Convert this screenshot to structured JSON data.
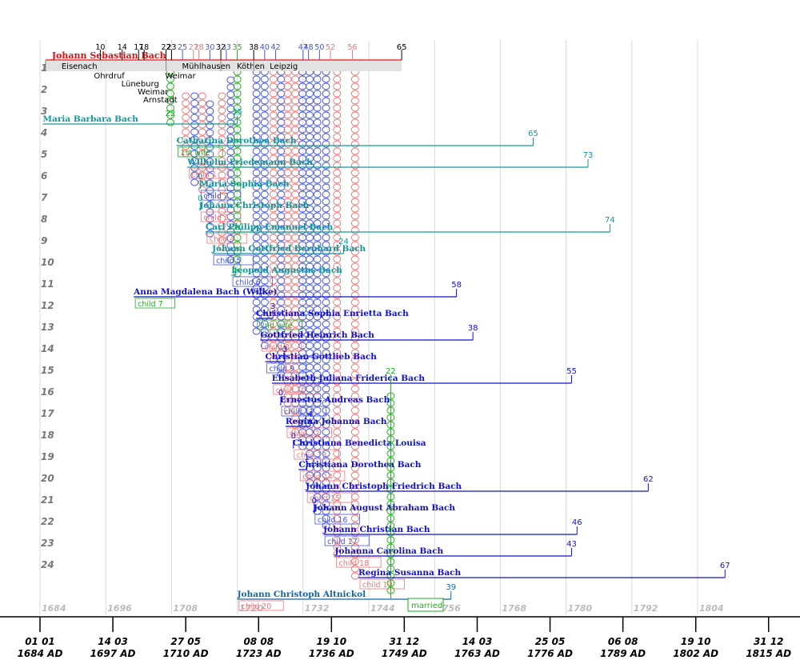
{
  "colors": {
    "bach": "#dd1111",
    "first_wife": "#119999",
    "second_wife": "#1111cc",
    "green": "#22aa22",
    "pink": "#ee7777",
    "grid": "#d8d8d8",
    "axis_label": "#bbbbbb",
    "row_num": "#777777",
    "blue_light": "#4455dd",
    "altnickol": "#1166aa"
  },
  "chart_data": {
    "type": "timeline",
    "title": "",
    "x_axis": {
      "grid_years": [
        "1684",
        "1696",
        "1708",
        "1720",
        "1732",
        "1744",
        "1756",
        "1768",
        "1780",
        "1792",
        "1804"
      ],
      "date_ticks": [
        {
          "date": "01 01",
          "year": "1684 AD",
          "value": 1684.0
        },
        {
          "date": "14 03",
          "year": "1697 AD",
          "value": 1697.2
        },
        {
          "date": "27 05",
          "year": "1710 AD",
          "value": 1710.4
        },
        {
          "date": "08 08",
          "year": "1723 AD",
          "value": 1723.6
        },
        {
          "date": "19 10",
          "year": "1736 AD",
          "value": 1736.8
        },
        {
          "date": "31 12",
          "year": "1749 AD",
          "value": 1749.99
        },
        {
          "date": "14 03",
          "year": "1763 AD",
          "value": 1763.2
        },
        {
          "date": "25 05",
          "year": "1776 AD",
          "value": 1776.4
        },
        {
          "date": "06 08",
          "year": "1789 AD",
          "value": 1789.6
        },
        {
          "date": "19 10",
          "year": "1802 AD",
          "value": 1802.8
        },
        {
          "date": "31 12",
          "year": "1815 AD",
          "value": 1815.99
        }
      ]
    },
    "row_numbers": [
      "1",
      "2",
      "3",
      "4",
      "5",
      "6",
      "7",
      "8",
      "9",
      "10",
      "11",
      "12",
      "13",
      "14",
      "15",
      "16",
      "17",
      "18",
      "19",
      "20",
      "21",
      "22",
      "23",
      "24"
    ],
    "main": {
      "name": "Johann Sebastian Bach",
      "start": 1685,
      "end": 1750,
      "age_label": "65",
      "age_ticks": [
        {
          "age": "10",
          "year": 1695
        },
        {
          "age": "14",
          "year": 1699
        },
        {
          "age": "17",
          "year": 1702
        },
        {
          "age": "18",
          "year": 1703
        },
        {
          "age": "22",
          "year": 1707
        },
        {
          "age": "23",
          "year": 1708
        },
        {
          "age": "25",
          "year": 1710
        },
        {
          "age": "27",
          "year": 1712
        },
        {
          "age": "28",
          "year": 1713
        },
        {
          "age": "30",
          "year": 1715
        },
        {
          "age": "32",
          "year": 1717
        },
        {
          "age": "33",
          "year": 1718
        },
        {
          "age": "35",
          "year": 1720
        },
        {
          "age": "38",
          "year": 1723
        },
        {
          "age": "40",
          "year": 1725
        },
        {
          "age": "42",
          "year": 1727
        },
        {
          "age": "47",
          "year": 1732
        },
        {
          "age": "48",
          "year": 1733
        },
        {
          "age": "50",
          "year": 1735
        },
        {
          "age": "52",
          "year": 1737
        },
        {
          "age": "56",
          "year": 1741
        }
      ],
      "places": [
        {
          "name": "Eisenach",
          "start": 1685,
          "end": 1695
        },
        {
          "name": "Mühlhausen",
          "start": 1707,
          "end": 1708
        },
        {
          "name": "Köthen",
          "start": 1717,
          "end": 1723
        },
        {
          "name": "Leipzig",
          "start": 1723,
          "end": 1750
        }
      ],
      "sub_places": [
        {
          "name": "Ohrdruf",
          "year": 1695
        },
        {
          "name": "Lüneburg",
          "year": 1700
        },
        {
          "name": "Weimar",
          "year": 1703
        },
        {
          "name": "Arnstadt",
          "year": 1704
        },
        {
          "name": "Weimar",
          "year": 1708
        }
      ]
    },
    "people": [
      {
        "row": 1,
        "name": "Maria Barbara Bach",
        "birth": 1684.5,
        "death": 1720,
        "age": "35",
        "color": "first_wife",
        "marry_age": "22",
        "marry_year": 1707.8
      },
      {
        "row": 2,
        "name": "Catharina Dorothea Bach",
        "birth": 1708.9,
        "death": 1774,
        "age": "65",
        "color": "first_wife",
        "sub": "1st wife",
        "sub_color": "green"
      },
      {
        "row": 3,
        "name": "Wilhelm Friedemann Bach",
        "birth": 1710.9,
        "death": 1784,
        "age": "73",
        "color": "first_wife",
        "sub": "child 1",
        "sub_color": "pink"
      },
      {
        "row": 4,
        "name": "Maria Sophia Bach",
        "birth": 1713.1,
        "death": 1713.1,
        "age": "0",
        "color": "first_wife",
        "sub": "child 2",
        "sub_color": "blue_light"
      },
      {
        "row": 5,
        "name": "Johann Christoph Bach",
        "birth": 1713.1,
        "death": 1713.1,
        "age": "0",
        "color": "first_wife",
        "sub": "child 3",
        "sub_color": "pink"
      },
      {
        "row": 6,
        "name": "Carl Philipp Emanuel Bach",
        "birth": 1714.2,
        "death": 1788,
        "age": "74",
        "color": "first_wife",
        "sub": "child 4",
        "sub_color": "pink"
      },
      {
        "row": 7,
        "name": "Johann Gottfried Bernhard Bach",
        "birth": 1715.4,
        "death": 1739.4,
        "age": "24",
        "color": "first_wife",
        "sub": "child 5",
        "sub_color": "blue_light"
      },
      {
        "row": 8,
        "name": "Leopold Augustus Bach",
        "birth": 1718.9,
        "death": 1719.7,
        "age": "",
        "color": "first_wife",
        "sub": "child 6",
        "sub_color": "blue_light"
      },
      {
        "row": 9,
        "name": "Anna Magdalena Bach (Wilke)",
        "birth": 1701.1,
        "death": 1760,
        "age": "58",
        "color": "second_wife",
        "sub": "child 7",
        "sub_color": "green"
      },
      {
        "row": 10,
        "name": "Christiana Sophia Enrietta Bach",
        "birth": 1723.4,
        "death": 1726.5,
        "age": "3",
        "color": "second_wife",
        "sub": "2nd wife",
        "sub_color": "green"
      },
      {
        "row": 11,
        "name": "Gottfried Heinrich Bach",
        "birth": 1724.2,
        "death": 1763,
        "age": "38",
        "color": "second_wife",
        "sub": "child 8",
        "sub_color": "pink"
      },
      {
        "row": 12,
        "name": "Christian Gottlieb Bach",
        "birth": 1725.1,
        "death": 1728.7,
        "age": "3",
        "color": "second_wife",
        "sub": "child 9",
        "sub_color": "blue_light"
      },
      {
        "row": 13,
        "name": "Elisabeth Juliana Friderica Bach",
        "birth": 1726.3,
        "death": 1781,
        "age": "55",
        "color": "second_wife",
        "sub": "child 10",
        "sub_color": "pink"
      },
      {
        "row": 14,
        "name": "Ernestus Andreas Bach",
        "birth": 1727.8,
        "death": 1727.9,
        "age": "0",
        "color": "second_wife",
        "sub": "child 11",
        "sub_color": "blue_light"
      },
      {
        "row": 15,
        "name": "Regina Johanna Bach",
        "birth": 1728.8,
        "death": 1733.3,
        "age": "4",
        "color": "second_wife",
        "sub": "child 12",
        "sub_color": "pink"
      },
      {
        "row": 16,
        "name": "Christiana Benedicta Louisa",
        "birth": 1730.1,
        "death": 1730.1,
        "age": "0",
        "color": "second_wife",
        "sub": "child 13",
        "sub_color": "pink"
      },
      {
        "row": 17,
        "name": "Christiana Dorothea Bach",
        "birth": 1731.2,
        "death": 1732.7,
        "age": "1",
        "color": "second_wife",
        "sub": "child 14",
        "sub_color": "pink"
      },
      {
        "row": 18,
        "name": "Johann Christoph Friedrich Bach",
        "birth": 1732.5,
        "death": 1795,
        "age": "62",
        "color": "second_wife",
        "sub": "child 15",
        "sub_color": "pink"
      },
      {
        "row": 19,
        "name": "Johann August Abraham Bach",
        "birth": 1733.9,
        "death": 1733.9,
        "age": "0",
        "color": "second_wife",
        "sub": "child 16",
        "sub_color": "blue_light"
      },
      {
        "row": 20,
        "name": "Johann Christian Bach",
        "birth": 1735.7,
        "death": 1782,
        "age": "46",
        "color": "second_wife",
        "sub": "child 17",
        "sub_color": "blue_light"
      },
      {
        "row": 21,
        "name": "Johanna Carolina Bach",
        "birth": 1737.8,
        "death": 1781,
        "age": "43",
        "color": "second_wife",
        "sub": "child 18",
        "sub_color": "pink"
      },
      {
        "row": 22,
        "name": "Regina Susanna Bach",
        "birth": 1742.1,
        "death": 1809,
        "age": "67",
        "color": "second_wife",
        "sub": "child 19",
        "sub_color": "pink"
      },
      {
        "row": 23,
        "name": "Johann Christoph Altnickol",
        "birth": 1720,
        "death": 1759,
        "age": "39",
        "color": "altnickol",
        "sub": "child 20",
        "sub_color": "pink"
      }
    ],
    "married_label": "married",
    "green_marry_age": "22"
  }
}
